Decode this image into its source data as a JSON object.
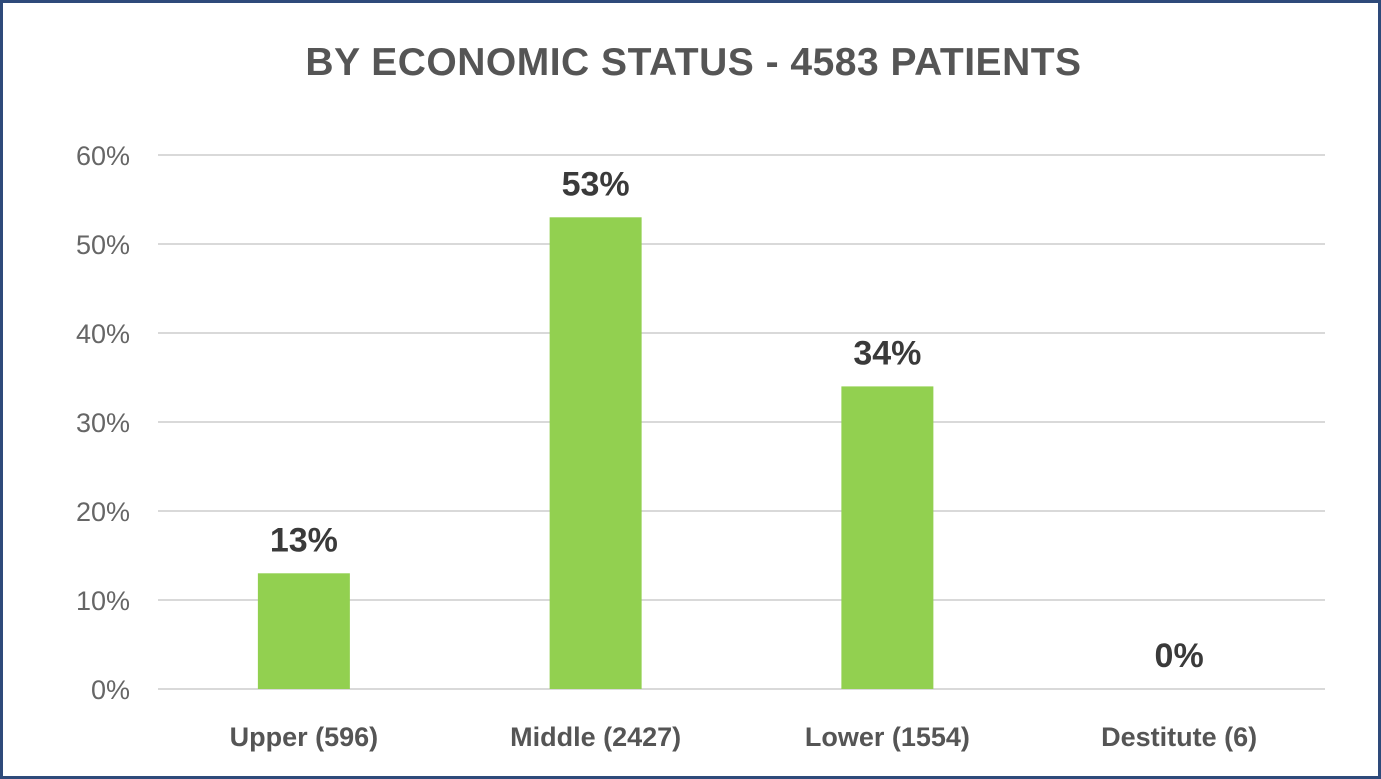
{
  "chart_data": {
    "type": "bar",
    "title": "BY ECONOMIC STATUS - 4583 PATIENTS",
    "categories": [
      "Upper (596)",
      "Middle (2427)",
      "Lower (1554)",
      "Destitute (6)"
    ],
    "values": [
      13,
      53,
      34,
      0
    ],
    "data_labels": [
      "13%",
      "53%",
      "34%",
      "0%"
    ],
    "ylim": [
      0,
      60
    ],
    "yticks": [
      0,
      10,
      20,
      30,
      40,
      50,
      60
    ],
    "ytick_labels": [
      "0%",
      "10%",
      "20%",
      "30%",
      "40%",
      "50%",
      "60%"
    ],
    "xlabel": "",
    "ylabel": "",
    "grid": true,
    "legend": "none",
    "bar_color": "#92d050",
    "border_color": "#2e4a7a"
  }
}
